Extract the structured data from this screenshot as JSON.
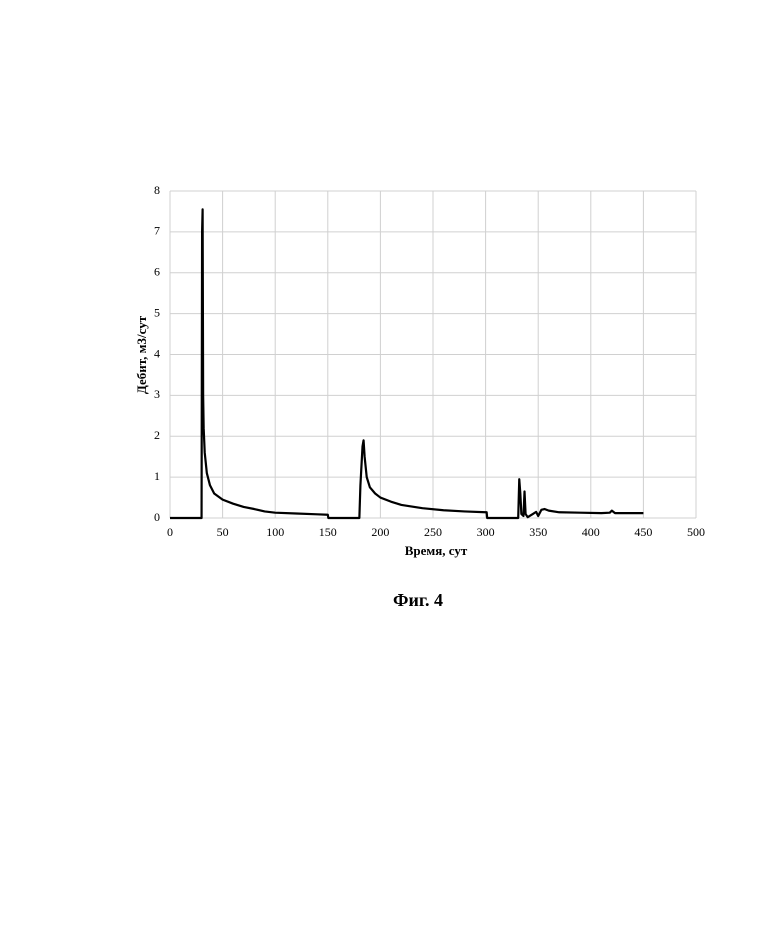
{
  "chart_data": {
    "type": "line",
    "x_label": "Время, сут",
    "y_label": "Дебит, м3/сут",
    "caption": "Фиг. 4",
    "x": [
      0,
      30,
      30.5,
      31,
      31.5,
      32,
      33,
      35,
      38,
      42,
      50,
      60,
      70,
      80,
      90,
      100,
      120,
      140,
      150,
      150.5,
      180,
      181,
      183,
      184,
      185,
      187,
      190,
      195,
      200,
      210,
      220,
      240,
      260,
      280,
      300,
      301,
      301.5,
      331,
      332,
      333,
      334,
      336,
      337,
      338,
      340,
      345,
      348,
      350,
      353,
      356,
      360,
      370,
      390,
      410,
      418,
      420,
      423,
      440,
      450
    ],
    "values": [
      0,
      0,
      7.0,
      7.55,
      3.0,
      2.2,
      1.6,
      1.1,
      0.8,
      0.6,
      0.45,
      0.35,
      0.27,
      0.22,
      0.16,
      0.13,
      0.11,
      0.09,
      0.08,
      0,
      0,
      0.8,
      1.75,
      1.9,
      1.5,
      1.0,
      0.75,
      0.6,
      0.5,
      0.4,
      0.32,
      0.24,
      0.19,
      0.16,
      0.14,
      0.14,
      0,
      0,
      0.95,
      0.6,
      0.1,
      0.05,
      0.65,
      0.1,
      0.02,
      0.1,
      0.15,
      0.05,
      0.2,
      0.22,
      0.18,
      0.14,
      0.13,
      0.12,
      0.13,
      0.18,
      0.12,
      0.12,
      0.12
    ],
    "color": "#000000",
    "xlim": [
      0,
      500
    ],
    "xticks": [
      0,
      50,
      100,
      150,
      200,
      250,
      300,
      350,
      400,
      450,
      500
    ],
    "ylim": [
      0,
      8
    ],
    "yticks": [
      0,
      1,
      2,
      3,
      4,
      5,
      6,
      7,
      8
    ],
    "grid": true
  }
}
